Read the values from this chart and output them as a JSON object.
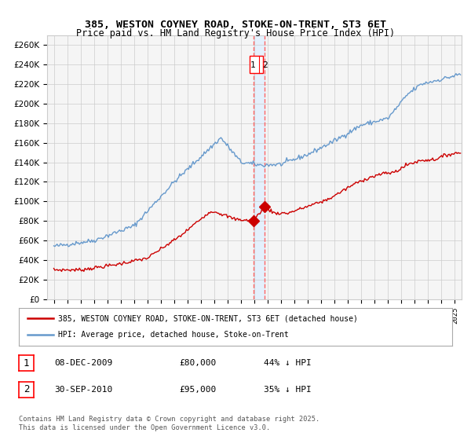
{
  "title": "385, WESTON COYNEY ROAD, STOKE-ON-TRENT, ST3 6ET",
  "subtitle": "Price paid vs. HM Land Registry's House Price Index (HPI)",
  "legend_line1": "385, WESTON COYNEY ROAD, STOKE-ON-TRENT, ST3 6ET (detached house)",
  "legend_line2": "HPI: Average price, detached house, Stoke-on-Trent",
  "footer": "Contains HM Land Registry data © Crown copyright and database right 2025.\nThis data is licensed under the Open Government Licence v3.0.",
  "annotation1_date": "08-DEC-2009",
  "annotation1_price": "£80,000",
  "annotation1_hpi": "44% ↓ HPI",
  "annotation2_date": "30-SEP-2010",
  "annotation2_price": "£95,000",
  "annotation2_hpi": "35% ↓ HPI",
  "sale1_x": 2009.94,
  "sale1_y": 80000,
  "sale2_x": 2010.75,
  "sale2_y": 95000,
  "vline1_x": 2009.94,
  "vline2_x": 2010.75,
  "ylim": [
    0,
    270000
  ],
  "xlim_start": 1994.5,
  "xlim_end": 2025.5,
  "ytick_step": 20000,
  "red_color": "#cc0000",
  "blue_color": "#6699cc",
  "grid_color": "#cccccc",
  "bg_color": "#ffffff",
  "plot_bg_color": "#f5f5f5",
  "vline_color": "#ff6666",
  "vline_shade_color": "#ddeeff"
}
